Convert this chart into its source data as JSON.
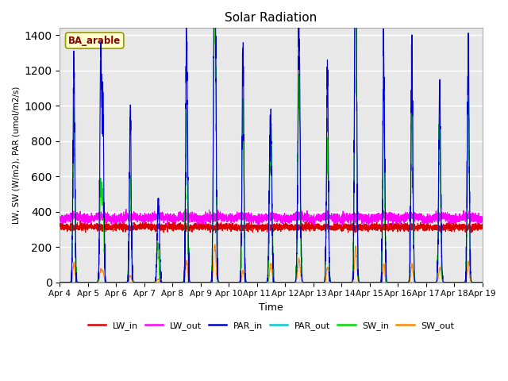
{
  "title": "Solar Radiation",
  "xlabel": "Time",
  "ylabel": "LW, SW (W/m2), PAR (umol/m2/s)",
  "annotation": "BA_arable",
  "ylim": [
    0,
    1440
  ],
  "yticks": [
    0,
    200,
    400,
    600,
    800,
    1000,
    1200,
    1400
  ],
  "series": {
    "LW_in": {
      "color": "#dd0000",
      "lw": 0.8
    },
    "LW_out": {
      "color": "#ff00ff",
      "lw": 0.8
    },
    "PAR_in": {
      "color": "#0000cc",
      "lw": 0.8
    },
    "PAR_out": {
      "color": "#00cccc",
      "lw": 0.8
    },
    "SW_in": {
      "color": "#00dd00",
      "lw": 0.8
    },
    "SW_out": {
      "color": "#ff8800",
      "lw": 0.8
    }
  },
  "xtick_labels": [
    "Apr 4",
    "Apr 5",
    "Apr 6",
    "Apr 7",
    "Apr 8",
    "Apr 9",
    "Apr 10",
    "Apr 11",
    "Apr 12",
    "Apr 13",
    "Apr 14",
    "Apr 15",
    "Apr 16",
    "Apr 17",
    "Apr 18",
    "Apr 19"
  ],
  "bg_color": "#ffffff",
  "plot_bg": "#e8e8e8",
  "legend_items": [
    "LW_in",
    "LW_out",
    "PAR_in",
    "PAR_out",
    "SW_in",
    "SW_out"
  ]
}
